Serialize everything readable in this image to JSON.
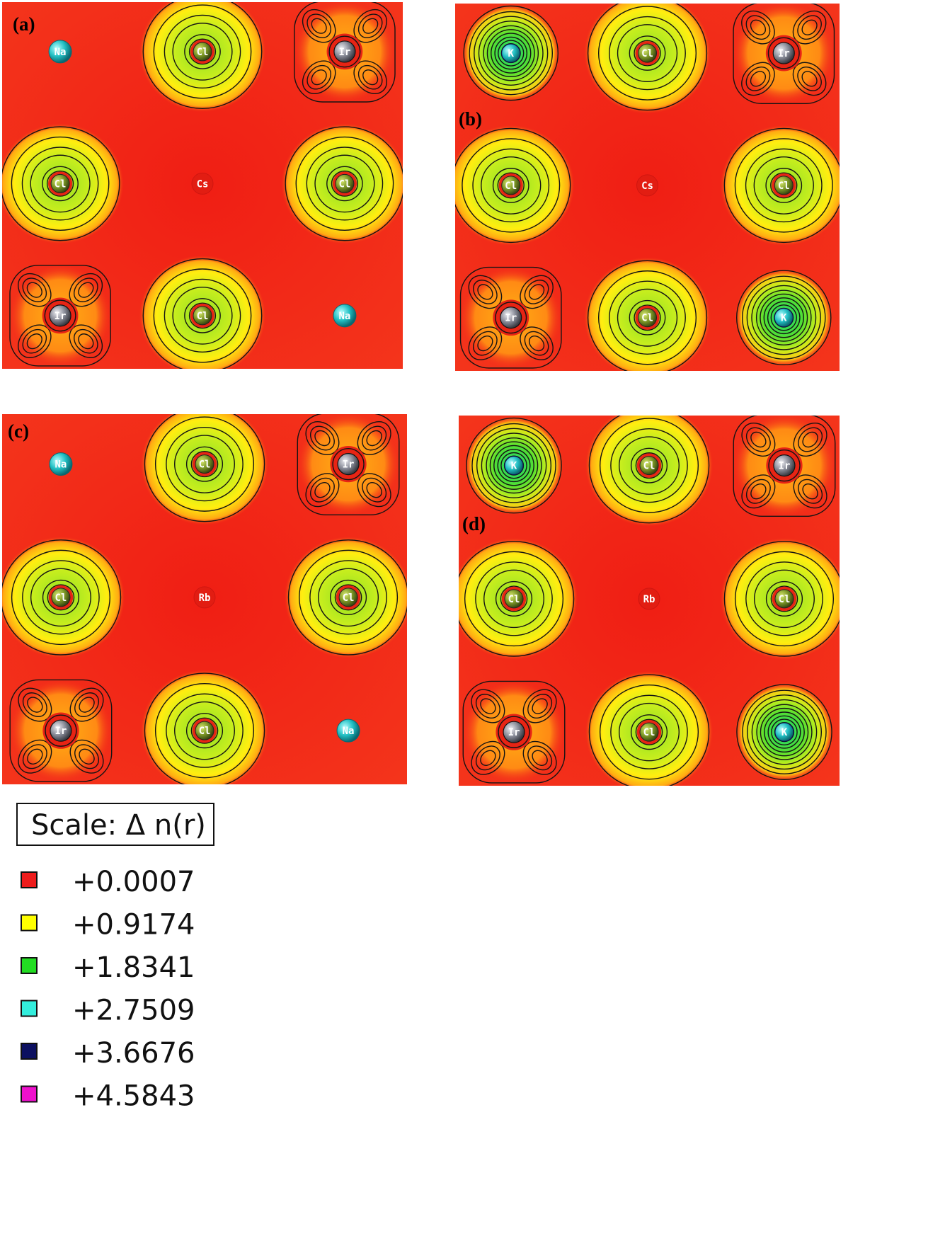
{
  "panels": [
    {
      "id": "a",
      "label": "(a)",
      "atoms": [
        {
          "element": "Na",
          "label": "Na",
          "pos": [
            0,
            0
          ]
        },
        {
          "element": "Cl",
          "label": "Cl",
          "pos": [
            1,
            0
          ]
        },
        {
          "element": "Ir",
          "label": "Ir",
          "pos": [
            2,
            0
          ]
        },
        {
          "element": "Cl",
          "label": "Cl",
          "pos": [
            0,
            1
          ]
        },
        {
          "element": "Cs",
          "label": "Cs",
          "pos": [
            1,
            1
          ]
        },
        {
          "element": "Cl",
          "label": "Cl",
          "pos": [
            2,
            1
          ]
        },
        {
          "element": "Ir",
          "label": "Ir",
          "pos": [
            0,
            2
          ]
        },
        {
          "element": "Cl",
          "label": "Cl",
          "pos": [
            1,
            2
          ]
        },
        {
          "element": "Na",
          "label": "Na",
          "pos": [
            2,
            2
          ]
        }
      ]
    },
    {
      "id": "b",
      "label": "(b)",
      "atoms": [
        {
          "element": "K",
          "label": "K",
          "pos": [
            0,
            0
          ]
        },
        {
          "element": "Cl",
          "label": "Cl",
          "pos": [
            1,
            0
          ]
        },
        {
          "element": "Ir",
          "label": "Ir",
          "pos": [
            2,
            0
          ]
        },
        {
          "element": "Cl",
          "label": "Cl",
          "pos": [
            0,
            1
          ]
        },
        {
          "element": "Cs",
          "label": "Cs",
          "pos": [
            1,
            1
          ]
        },
        {
          "element": "Cl",
          "label": "Cl",
          "pos": [
            2,
            1
          ]
        },
        {
          "element": "Ir",
          "label": "Ir",
          "pos": [
            0,
            2
          ]
        },
        {
          "element": "Cl",
          "label": "Cl",
          "pos": [
            1,
            2
          ]
        },
        {
          "element": "K",
          "label": "K",
          "pos": [
            2,
            2
          ]
        }
      ]
    },
    {
      "id": "c",
      "label": "(c)",
      "atoms": [
        {
          "element": "Na",
          "label": "Na",
          "pos": [
            0,
            0
          ]
        },
        {
          "element": "Cl",
          "label": "Cl",
          "pos": [
            1,
            0
          ]
        },
        {
          "element": "Ir",
          "label": "Ir",
          "pos": [
            2,
            0
          ]
        },
        {
          "element": "Cl",
          "label": "Cl",
          "pos": [
            0,
            1
          ]
        },
        {
          "element": "Rb",
          "label": "Rb",
          "pos": [
            1,
            1
          ]
        },
        {
          "element": "Cl",
          "label": "Cl",
          "pos": [
            2,
            1
          ]
        },
        {
          "element": "Ir",
          "label": "Ir",
          "pos": [
            0,
            2
          ]
        },
        {
          "element": "Cl",
          "label": "Cl",
          "pos": [
            1,
            2
          ]
        },
        {
          "element": "Na",
          "label": "Na",
          "pos": [
            2,
            2
          ]
        }
      ]
    },
    {
      "id": "d",
      "label": "(d)",
      "atoms": [
        {
          "element": "K",
          "label": "K",
          "pos": [
            0,
            0
          ]
        },
        {
          "element": "Cl",
          "label": "Cl",
          "pos": [
            1,
            0
          ]
        },
        {
          "element": "Ir",
          "label": "Ir",
          "pos": [
            2,
            0
          ]
        },
        {
          "element": "Cl",
          "label": "Cl",
          "pos": [
            0,
            1
          ]
        },
        {
          "element": "Rb",
          "label": "Rb",
          "pos": [
            1,
            1
          ]
        },
        {
          "element": "Cl",
          "label": "Cl",
          "pos": [
            2,
            1
          ]
        },
        {
          "element": "Ir",
          "label": "Ir",
          "pos": [
            0,
            2
          ]
        },
        {
          "element": "Cl",
          "label": "Cl",
          "pos": [
            1,
            2
          ]
        },
        {
          "element": "K",
          "label": "K",
          "pos": [
            2,
            2
          ]
        }
      ]
    }
  ],
  "legend": {
    "title": "Scale:   Δ n(r)",
    "entries": [
      {
        "value": "+0.0007",
        "color": "#ee1c1c"
      },
      {
        "value": "+0.9174",
        "color": "#ffff00"
      },
      {
        "value": "+1.8341",
        "color": "#22dd22"
      },
      {
        "value": "+2.7509",
        "color": "#33eedd"
      },
      {
        "value": "+3.6676",
        "color": "#0c1060"
      },
      {
        "value": "+4.5843",
        "color": "#ee11cc"
      }
    ]
  },
  "colors": {
    "background": "#f22a18",
    "yellow": "#ffee10",
    "green": "#8fe022",
    "atom_Na": "#22c0c4",
    "atom_K": "#22c0c4",
    "atom_Cl": "#7f9a28",
    "atom_Ir": "#8a8d99",
    "atom_Cs": "#e21d12",
    "atom_Rb": "#e21d12"
  }
}
